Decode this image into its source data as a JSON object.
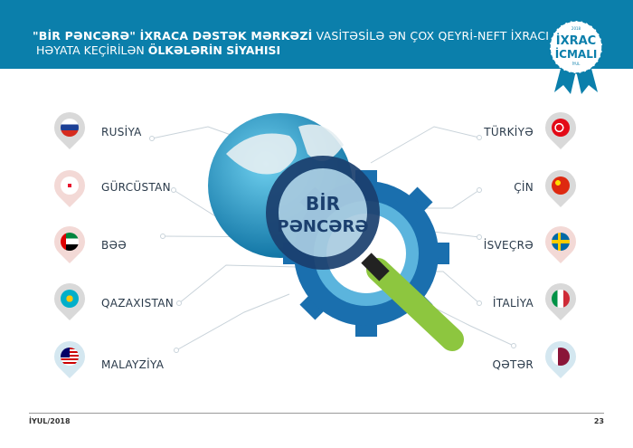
{
  "header": {
    "title_bold_1": "\"BİR PƏNCƏRƏ\" İXRACA DƏSTƏK MƏRKƏZİ",
    "title_regular_1": " VASİTƏSİLƏ ƏN ÇOX QEYRİ-NEFT İXRACI",
    "title_regular_2": "HƏYATA KEÇİRİLƏN ",
    "title_bold_2": "ÖLKƏLƏRİN SİYAHISI"
  },
  "badge": {
    "year": "2018",
    "line1": "İXRAC",
    "line2": "İCMALI",
    "month": "İYUL"
  },
  "center": {
    "line1": "BİR",
    "line2": "PƏNCƏRƏ"
  },
  "countries_left": [
    {
      "name": "RUSİYA",
      "flag": "russia-flag"
    },
    {
      "name": "GÜRCÜSTAN",
      "flag": "georgia-flag"
    },
    {
      "name": "BƏƏ",
      "flag": "uae-flag"
    },
    {
      "name": "QAZAXISTAN",
      "flag": "kazakhstan-flag"
    },
    {
      "name": "MALAYZİYA",
      "flag": "malaysia-flag"
    }
  ],
  "countries_right": [
    {
      "name": "TÜRKİYƏ",
      "flag": "turkey-flag"
    },
    {
      "name": "ÇİN",
      "flag": "china-flag"
    },
    {
      "name": "İSVEÇRƏ",
      "flag": "sweden-flag"
    },
    {
      "name": "İTALİYA",
      "flag": "italy-flag"
    },
    {
      "name": "QƏTƏR",
      "flag": "qatar-flag"
    }
  ],
  "footer": {
    "date": "İYUL/2018",
    "page": "23"
  },
  "colors": {
    "header": "#0b7fab",
    "ring": "#1b3f6e",
    "gear": "#1a6fae",
    "handle": "#8dc63f"
  }
}
